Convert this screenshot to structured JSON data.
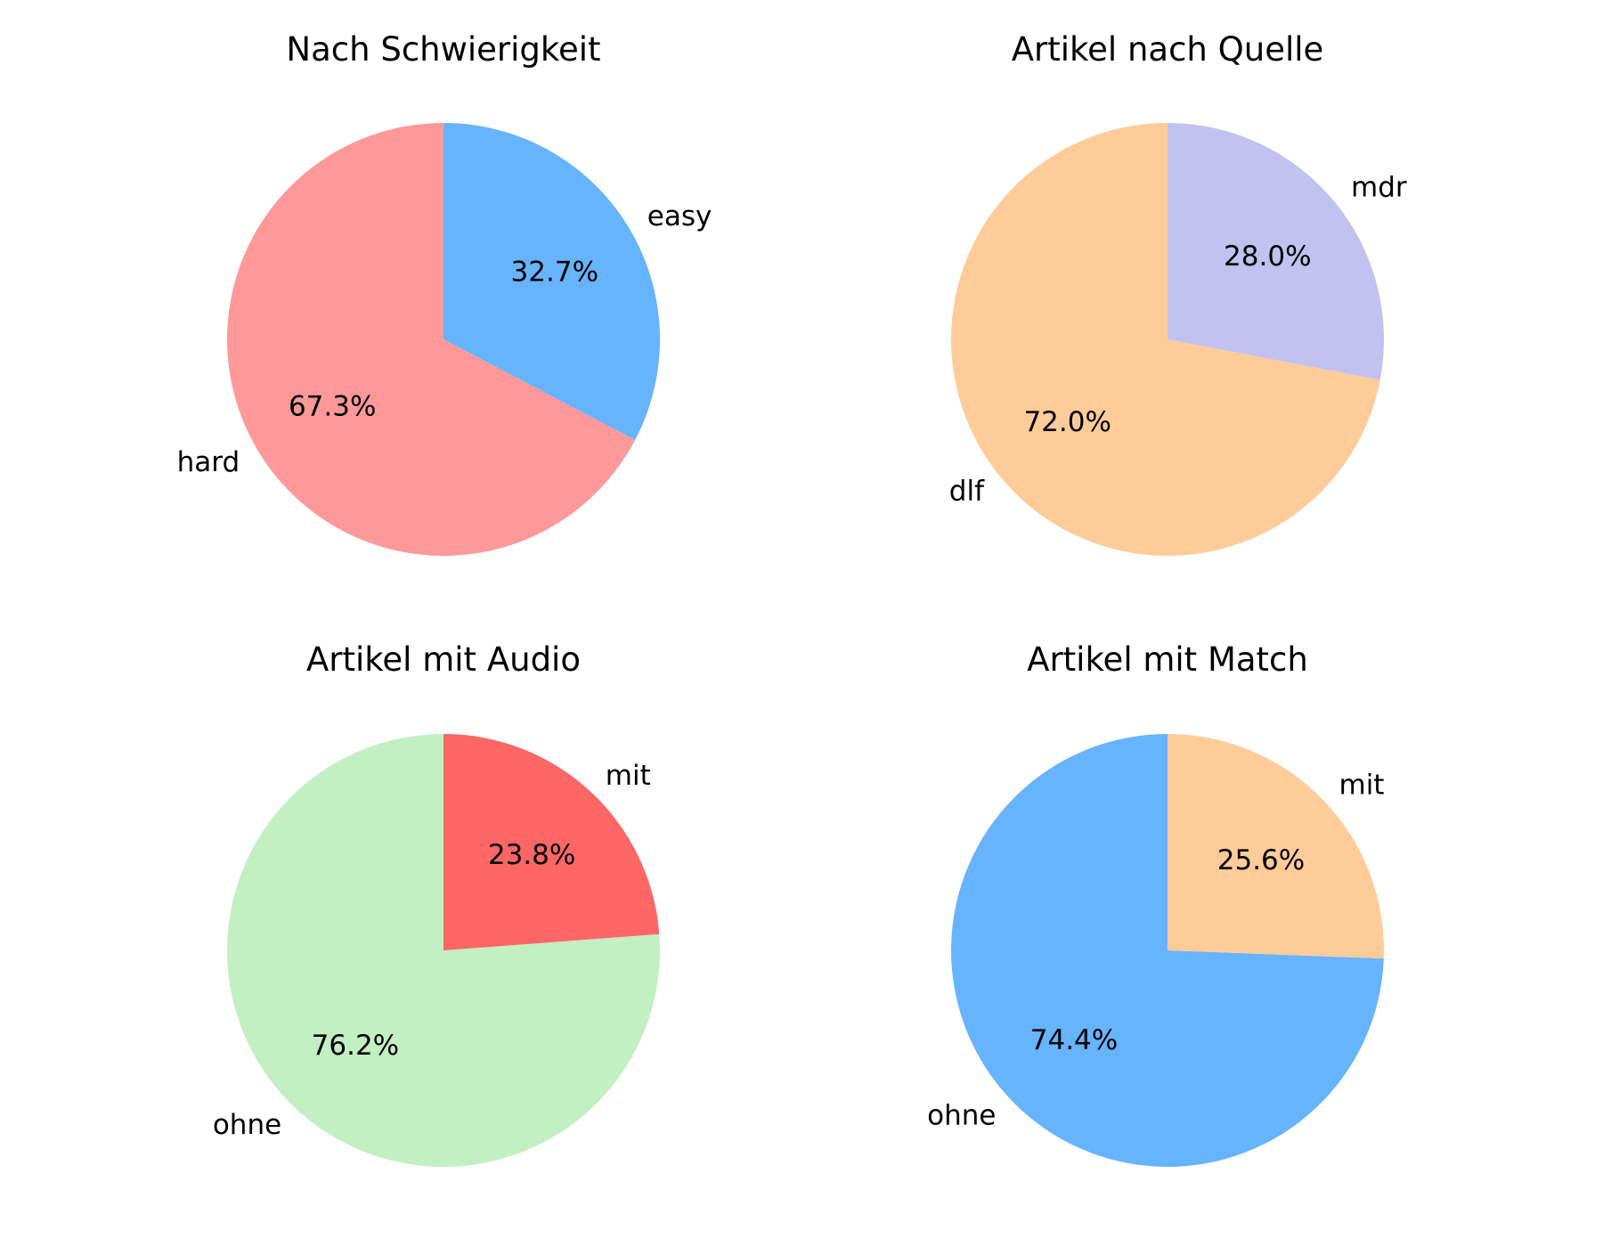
{
  "chart_data": [
    {
      "type": "pie",
      "title": "Nach Schwierigkeit",
      "slices": [
        {
          "label": "hard",
          "value": 67.3,
          "pct_label": "67.3%",
          "color": "#ff9999"
        },
        {
          "label": "easy",
          "value": 32.7,
          "pct_label": "32.7%",
          "color": "#66b3ff"
        }
      ]
    },
    {
      "type": "pie",
      "title": "Artikel nach Quelle",
      "slices": [
        {
          "label": "dlf",
          "value": 72.0,
          "pct_label": "72.0%",
          "color": "#ffcc99"
        },
        {
          "label": "mdr",
          "value": 28.0,
          "pct_label": "28.0%",
          "color": "#c2c2f0"
        }
      ]
    },
    {
      "type": "pie",
      "title": "Artikel mit Audio",
      "slices": [
        {
          "label": "ohne",
          "value": 76.2,
          "pct_label": "76.2%",
          "color": "#c2f0c2"
        },
        {
          "label": "mit",
          "value": 23.8,
          "pct_label": "23.8%",
          "color": "#ff6666"
        }
      ]
    },
    {
      "type": "pie",
      "title": "Artikel mit Match",
      "slices": [
        {
          "label": "ohne",
          "value": 74.4,
          "pct_label": "74.4%",
          "color": "#66b3ff"
        },
        {
          "label": "mit",
          "value": 25.6,
          "pct_label": "25.6%",
          "color": "#ffcc99"
        }
      ]
    }
  ]
}
